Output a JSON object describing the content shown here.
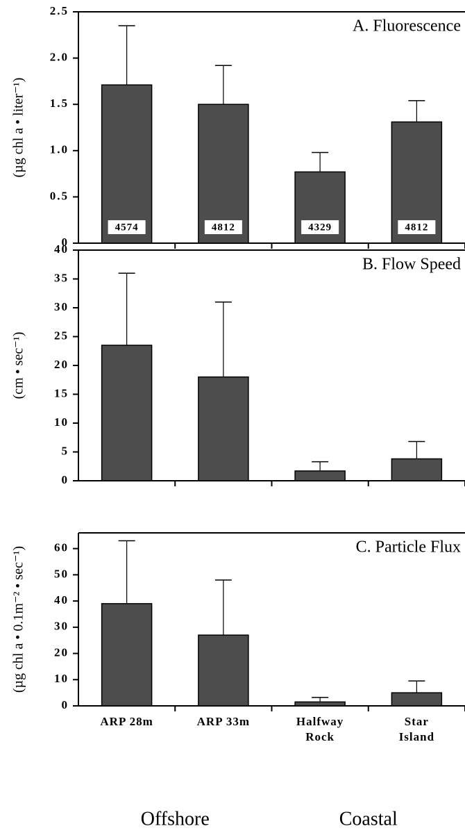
{
  "chart_data": [
    {
      "type": "bar",
      "title": "A.  Fluorescence",
      "y_label": "(µg chl a • liter⁻¹)",
      "values": [
        1.71,
        1.5,
        0.77,
        1.31
      ],
      "errors": [
        0.64,
        0.42,
        0.21,
        0.23
      ],
      "n_labels": [
        "4574",
        "4812",
        "4329",
        "4812"
      ],
      "color": "#4d4d4d",
      "ylim": [
        0,
        2.5
      ],
      "yticks": [
        0,
        0.5,
        {
          "value": 1,
          "label": "1.0"
        },
        1.5,
        {
          "value": 2,
          "label": "2.0"
        },
        2.5
      ]
    },
    {
      "type": "bar",
      "title": "B.  Flow Speed",
      "y_label": "(cm • sec⁻¹)",
      "values": [
        23.5,
        18,
        1.7,
        3.8
      ],
      "errors": [
        12.5,
        13,
        1.6,
        3
      ],
      "color": "#4d4d4d",
      "ylim": [
        0,
        40
      ],
      "yticks": [
        0,
        5,
        10,
        15,
        20,
        25,
        30,
        35,
        40
      ]
    },
    {
      "type": "bar",
      "title": "C.  Particle Flux",
      "y_label": "(µg chl a • 0.1m⁻² • sec⁻¹)",
      "values": [
        39,
        27,
        1.5,
        5
      ],
      "errors": [
        24,
        21,
        1.7,
        4.5
      ],
      "color": "#4d4d4d",
      "ylim": [
        0,
        66
      ],
      "yticks": [
        0,
        10,
        20,
        30,
        40,
        50,
        60
      ],
      "categories": [
        [
          "ARP  28m"
        ],
        [
          "ARP  33m"
        ],
        [
          "Halfway",
          "Rock"
        ],
        [
          "Star",
          "Island"
        ]
      ],
      "groups": [
        "Offshore",
        "Coastal"
      ]
    }
  ]
}
